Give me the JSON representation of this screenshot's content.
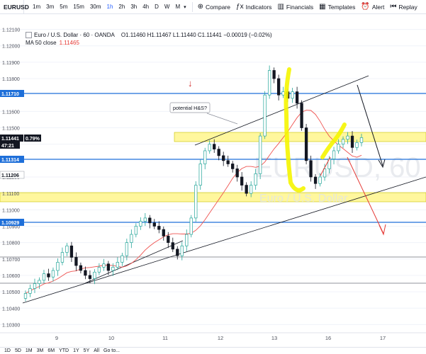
{
  "toolbar": {
    "symbol": "EURUSD",
    "timeframes": [
      "1m",
      "3m",
      "5m",
      "15m",
      "30m",
      "1h",
      "2h",
      "3h",
      "4h",
      "D",
      "W",
      "M"
    ],
    "active_timeframe": "1h",
    "compare": "Compare",
    "indicators": "Indicators",
    "financials": "Financials",
    "templates": "Templates",
    "alert": "Alert",
    "replay": "Replay"
  },
  "legend": {
    "title": "Euro / U.S. Dollar · 60 · OANDA",
    "ohlc": "O1.11460 H1.11467 L1.11440 C1.11441 −0.00019 (−0.02%)",
    "ma_label": "MA 50 close",
    "ma_value": "1.11465"
  },
  "annotation": {
    "text": "potential H&S?"
  },
  "watermark": {
    "symbol": "EURUSD, 60",
    "name": "Euro / U.S. Dollar"
  },
  "price_scale": {
    "ticks": [
      "1.12100",
      "1.12000",
      "1.11900",
      "1.11800",
      "1.11600",
      "1.11500",
      "1.11400",
      "1.11200",
      "1.11100",
      "1.11000",
      "1.10900",
      "1.10800",
      "1.10700",
      "1.10600",
      "1.10500",
      "1.10400",
      "1.10300"
    ],
    "badges": [
      {
        "label": "1.11710",
        "color": "#1e6fd9"
      },
      {
        "label": "1.11441",
        "color": "#131722"
      },
      {
        "label": "0.79%",
        "color": "#131722"
      },
      {
        "label": "47:21",
        "color": "#131722"
      },
      {
        "label": "1.11314",
        "color": "#1e6fd9"
      },
      {
        "label": "1.11206",
        "color": "#ffffff"
      },
      {
        "label": "1.10929",
        "color": "#1e6fd9"
      }
    ]
  },
  "time_scale": {
    "ticks": [
      "9",
      "10",
      "11",
      "12",
      "13",
      "16",
      "17"
    ]
  },
  "bottom_bar": {
    "ranges": [
      "1D",
      "5D",
      "1M",
      "3M",
      "6M",
      "YTD",
      "1Y",
      "5Y",
      "All"
    ],
    "goto": "Go to..."
  },
  "colors": {
    "up": "#26a69a",
    "down": "#131722",
    "ma": "#ef5350",
    "hline": "#1e6fd9",
    "zone": "#fff04d",
    "highlight": "#f5f500"
  },
  "chart_data": {
    "type": "candlestick",
    "symbol": "EURUSD",
    "interval": "60",
    "price_range": [
      1.1025,
      1.1215
    ],
    "horizontal_levels": [
      1.1171,
      1.11314,
      1.10929
    ],
    "zones": [
      [
        1.1141,
        1.1147
      ],
      [
        1.1106,
        1.1112
      ]
    ],
    "close_path": [
      1.1049,
      1.1052,
      1.1055,
      1.1057,
      1.1061,
      1.1059,
      1.1063,
      1.1068,
      1.1074,
      1.1078,
      1.1071,
      1.1066,
      1.1063,
      1.106,
      1.1058,
      1.1062,
      1.1065,
      1.1067,
      1.1063,
      1.1065,
      1.1068,
      1.1072,
      1.108,
      1.1085,
      1.109,
      1.1093,
      1.1095,
      1.1092,
      1.109,
      1.1088,
      1.1084,
      1.108,
      1.1076,
      1.1072,
      1.1078,
      1.1085,
      1.1095,
      1.1115,
      1.1128,
      1.1136,
      1.114,
      1.1137,
      1.1133,
      1.113,
      1.1128,
      1.1125,
      1.112,
      1.1115,
      1.111,
      1.1115,
      1.1122,
      1.1145,
      1.117,
      1.1185,
      1.118,
      1.117,
      1.1172,
      1.1168,
      1.1172,
      1.1165,
      1.115,
      1.113,
      1.112,
      1.1116,
      1.112,
      1.1125,
      1.1131,
      1.1136,
      1.114,
      1.1143,
      1.1145,
      1.1138,
      1.1141,
      1.1144
    ]
  }
}
